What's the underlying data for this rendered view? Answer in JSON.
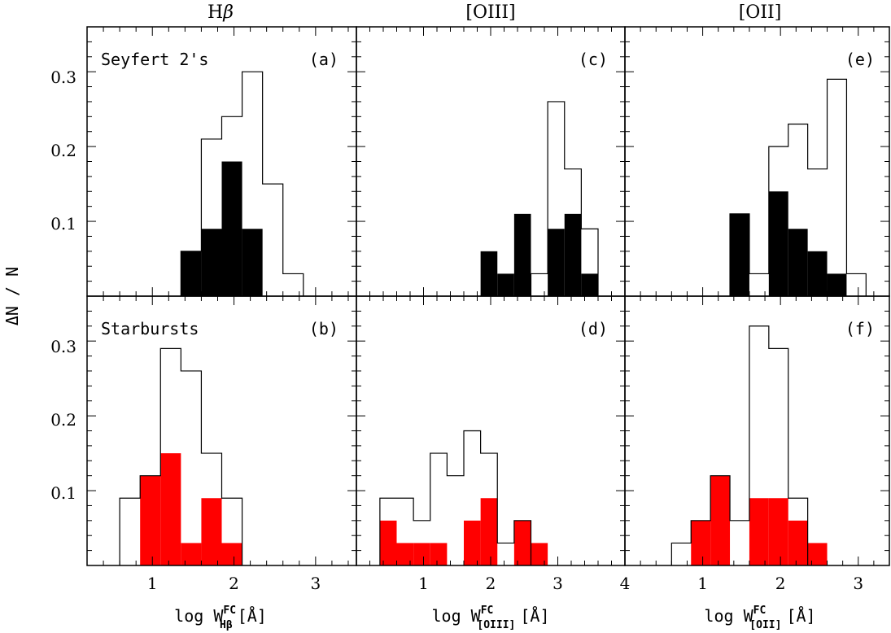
{
  "figure": {
    "ylabel": "ΔN / N",
    "column_titles": [
      {
        "main": "H",
        "greek": "β"
      },
      {
        "main": "[OIII]",
        "greek": ""
      },
      {
        "main": "[OII]",
        "greek": ""
      }
    ],
    "row_titles": [
      "Seyfert 2's",
      "Starbursts"
    ],
    "xlabels": [
      {
        "prefix": "log W",
        "sup": "FC",
        "sub": "Hβ",
        "suffix": "[Å]"
      },
      {
        "prefix": "log W",
        "sup": "FC",
        "sub": "[OIII]",
        "suffix": "[Å]"
      },
      {
        "prefix": "log W",
        "sup": "FC",
        "sub": "[OII]",
        "suffix": "[Å]"
      }
    ],
    "y_ticks": [
      "0.1",
      "0.2",
      "0.3"
    ],
    "fill_colors": {
      "seyfert": "#000000",
      "starburst": "#ff0000"
    }
  },
  "chart_data": [
    {
      "panel": "(a)",
      "type": "histogram",
      "row": "Seyfert 2's",
      "column": "Hβ",
      "xlim": [
        0.2,
        3.5
      ],
      "ylim": [
        0,
        0.36
      ],
      "xticks": [
        1,
        2,
        3
      ],
      "bin_width": 0.25,
      "outline": {
        "x_start": 1.35,
        "values": [
          0.06,
          0.21,
          0.24,
          0.3,
          0.15,
          0.03
        ]
      },
      "filled": {
        "x_start": 1.35,
        "values": [
          0.06,
          0.09,
          0.18,
          0.09
        ]
      }
    },
    {
      "panel": "(b)",
      "type": "histogram",
      "row": "Starbursts",
      "column": "Hβ",
      "xlim": [
        0.2,
        3.5
      ],
      "ylim": [
        0,
        0.36
      ],
      "xticks": [
        1,
        2,
        3
      ],
      "bin_width": 0.25,
      "outline": {
        "x_start": 0.6,
        "values": [
          0.09,
          0.12,
          0.29,
          0.26,
          0.15,
          0.09
        ]
      },
      "filled": {
        "x_start": 0.85,
        "values": [
          0.12,
          0.15,
          0.03,
          0.09,
          0.03
        ]
      }
    },
    {
      "panel": "(c)",
      "type": "histogram",
      "row": "Seyfert 2's",
      "column": "[OIII]",
      "xlim": [
        0.0,
        4.0
      ],
      "ylim": [
        0,
        0.36
      ],
      "xticks": [
        1,
        2,
        3,
        4
      ],
      "bin_width": 0.25,
      "outline": {
        "x_start": 2.6,
        "values": [
          0.03,
          0.26,
          0.17,
          0.09
        ]
      },
      "filled": {
        "x_start": 1.85,
        "values": [
          0.06,
          0.03,
          0.11,
          0.0,
          0.09,
          0.11,
          0.03
        ]
      }
    },
    {
      "panel": "(d)",
      "type": "histogram",
      "row": "Starbursts",
      "column": "[OIII]",
      "xlim": [
        0.0,
        4.0
      ],
      "ylim": [
        0,
        0.36
      ],
      "xticks": [
        1,
        2,
        3,
        4
      ],
      "bin_width": 0.25,
      "outline": {
        "x_start": 0.35,
        "values": [
          0.09,
          0.09,
          0.06,
          0.15,
          0.12,
          0.18,
          0.15,
          0.03,
          0.06
        ]
      },
      "filled": {
        "x_start": 0.35,
        "values": [
          0.06,
          0.03,
          0.03,
          0.03,
          0.0,
          0.06,
          0.09,
          0.0,
          0.06,
          0.03
        ]
      }
    },
    {
      "panel": "(e)",
      "type": "histogram",
      "row": "Seyfert 2's",
      "column": "[OII]",
      "xlim": [
        0.0,
        3.4
      ],
      "ylim": [
        0,
        0.36
      ],
      "xticks": [
        1,
        2,
        3
      ],
      "bin_width": 0.25,
      "outline": {
        "x_start": 1.35,
        "values": [
          0.11,
          0.03,
          0.2,
          0.23,
          0.17,
          0.29,
          0.03
        ]
      },
      "filled": {
        "x_start": 1.35,
        "values": [
          0.11,
          0.0,
          0.14,
          0.09,
          0.06,
          0.03
        ]
      }
    },
    {
      "panel": "(f)",
      "type": "histogram",
      "row": "Starbursts",
      "column": "[OII]",
      "xlim": [
        0.0,
        3.4
      ],
      "ylim": [
        0,
        0.36
      ],
      "xticks": [
        1,
        2,
        3
      ],
      "bin_width": 0.25,
      "outline": {
        "x_start": 0.6,
        "values": [
          0.03,
          0.06,
          0.12,
          0.06,
          0.32,
          0.29,
          0.09
        ]
      },
      "filled": {
        "x_start": 0.85,
        "values": [
          0.06,
          0.12,
          0.0,
          0.09,
          0.09,
          0.06,
          0.03
        ]
      }
    }
  ]
}
